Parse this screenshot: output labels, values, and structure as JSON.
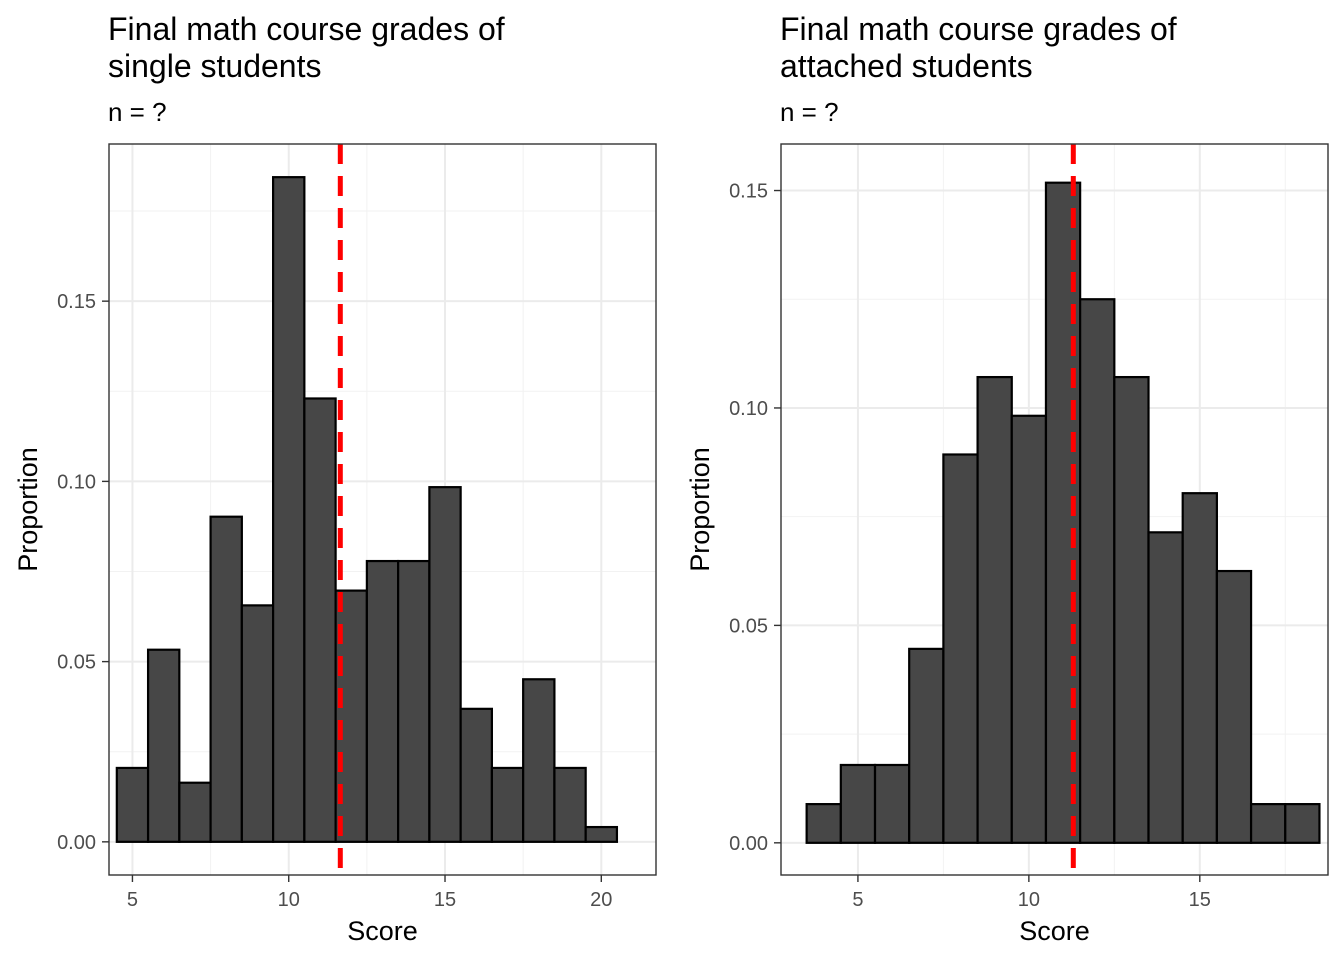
{
  "chart_data": [
    {
      "type": "bar",
      "title": "Final math course grades of single students",
      "title_lines": [
        "Final math course grades of",
        "single students"
      ],
      "subtitle": "n = ?",
      "xlabel": "Score",
      "ylabel": "Proportion",
      "bin_width": 1,
      "x": [
        5,
        6,
        7,
        8,
        9,
        10,
        11,
        12,
        13,
        14,
        15,
        16,
        17,
        18,
        19,
        20
      ],
      "values": [
        0.0205,
        0.0533,
        0.0164,
        0.0902,
        0.0656,
        0.1844,
        0.123,
        0.0697,
        0.0779,
        0.0779,
        0.0984,
        0.0369,
        0.0205,
        0.0451,
        0.0205,
        0.0041
      ],
      "mean_line": 11.65,
      "xlim": [
        4.25,
        21.75
      ],
      "ylim": [
        -0.0092,
        0.1936
      ],
      "xticks": [
        5,
        10,
        15,
        20
      ],
      "xtick_labels": [
        "5",
        "10",
        "15",
        "20"
      ],
      "yticks": [
        0,
        0.05,
        0.1,
        0.15
      ],
      "ytick_labels": [
        "0.00",
        "0.05",
        "0.10",
        "0.15"
      ],
      "grid": true,
      "bar_color": "#474747",
      "bar_edge_color": "#000000",
      "mean_line_color": "#ff0000"
    },
    {
      "type": "bar",
      "title": "Final math course grades of attached students",
      "title_lines": [
        "Final math course grades of",
        "attached students"
      ],
      "subtitle": "n = ?",
      "xlabel": "Score",
      "ylabel": "Proportion",
      "bin_width": 1,
      "x": [
        4,
        5,
        6,
        7,
        8,
        9,
        10,
        11,
        12,
        13,
        14,
        15,
        16,
        17,
        18
      ],
      "values": [
        0.0089,
        0.0179,
        0.0179,
        0.0446,
        0.0893,
        0.1071,
        0.0982,
        0.1518,
        0.125,
        0.1071,
        0.0714,
        0.0804,
        0.0625,
        0.0089,
        0.0089
      ],
      "mean_line": 11.3,
      "xlim": [
        2.75,
        18.75
      ],
      "ylim": [
        -0.0074,
        0.1607
      ],
      "xticks": [
        5,
        10,
        15
      ],
      "xtick_labels": [
        "5",
        "10",
        "15"
      ],
      "yticks": [
        0,
        0.05,
        0.1,
        0.15
      ],
      "ytick_labels": [
        "0.00",
        "0.05",
        "0.10",
        "0.15"
      ],
      "grid": true,
      "bar_color": "#474747",
      "bar_edge_color": "#000000",
      "mean_line_color": "#ff0000"
    }
  ]
}
